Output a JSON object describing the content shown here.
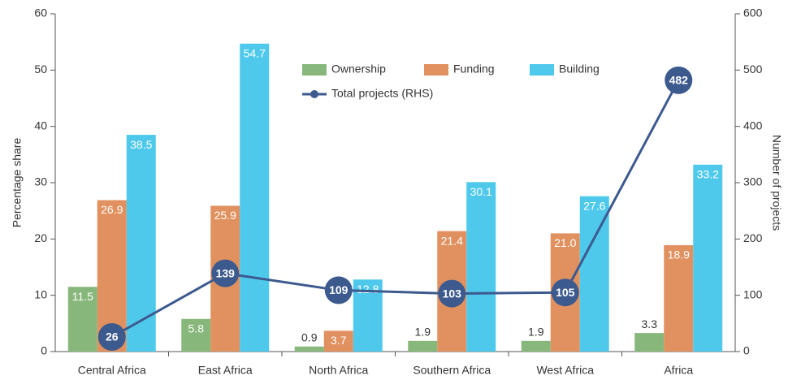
{
  "chart_data": {
    "type": "bar",
    "categories": [
      "Central Africa",
      "East Africa",
      "North Africa",
      "Southern Africa",
      "West Africa",
      "Africa"
    ],
    "series": [
      {
        "name": "Ownership",
        "color": "#88b77b",
        "values": [
          11.5,
          5.8,
          0.9,
          1.9,
          1.9,
          3.3
        ]
      },
      {
        "name": "Funding",
        "color": "#e0915f",
        "values": [
          26.9,
          25.9,
          3.7,
          21.4,
          21.0,
          18.9
        ],
        "value_labels": [
          "26.9",
          "25.9",
          "3.7",
          "21.4",
          "21.0",
          "18.9"
        ]
      },
      {
        "name": "Building",
        "color": "#4ec9ec",
        "values": [
          38.5,
          54.7,
          12.8,
          30.1,
          27.6,
          33.2
        ]
      },
      {
        "name": "Total projects (RHS)",
        "type": "line",
        "axis": "y2",
        "color": "#3d5a8f",
        "values": [
          26,
          139,
          109,
          103,
          105,
          482
        ]
      }
    ],
    "y_label": "Percentage share",
    "y2_label": "Number of projects",
    "ylim": [
      0,
      60
    ],
    "yticks": [
      0,
      10,
      20,
      30,
      40,
      50,
      60
    ],
    "y2lim": [
      0,
      600
    ],
    "y2ticks": [
      0,
      100,
      200,
      300,
      400,
      500,
      600
    ],
    "legend": "top"
  }
}
